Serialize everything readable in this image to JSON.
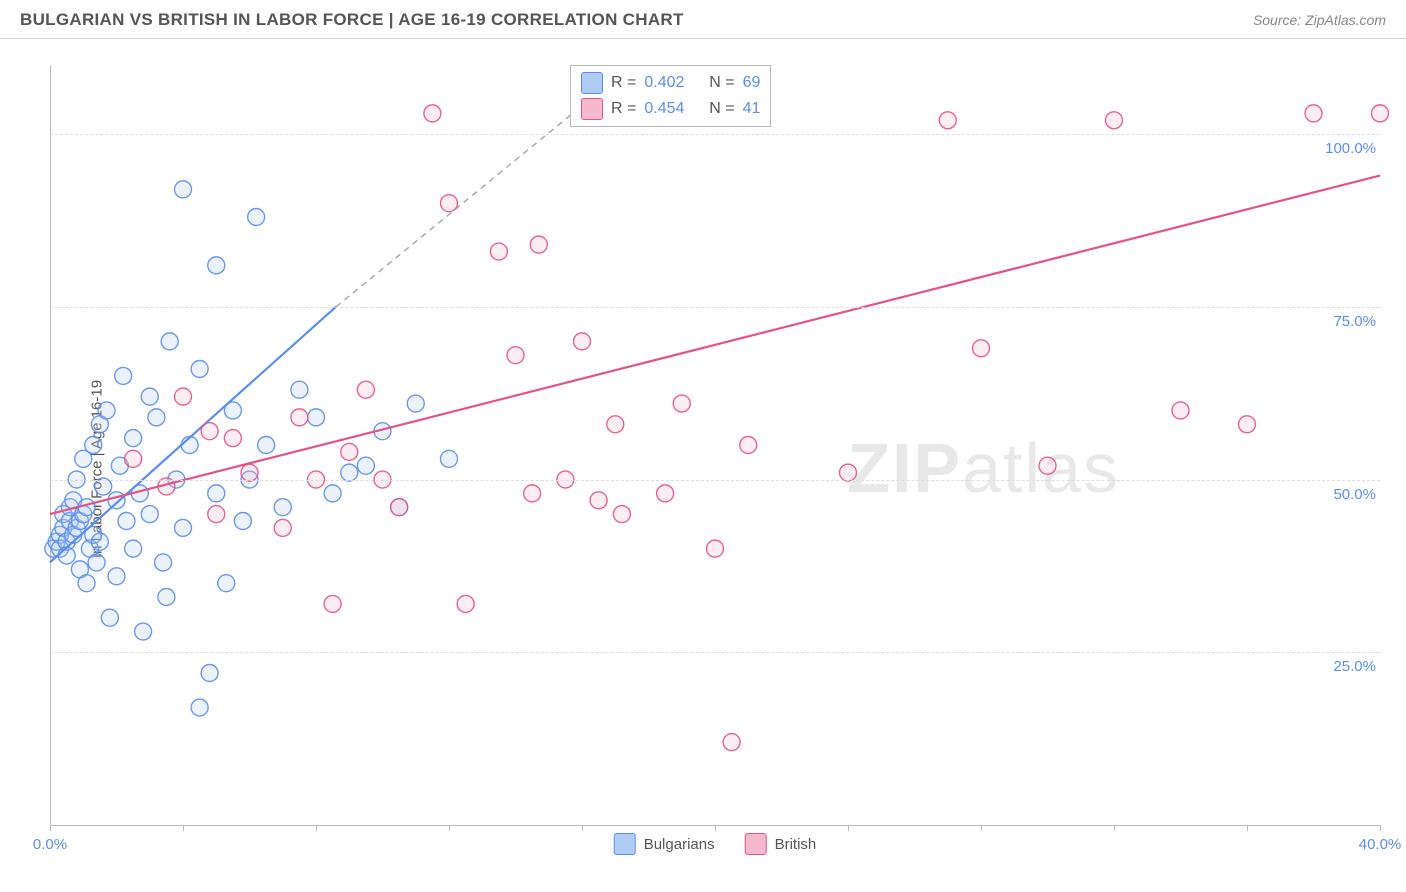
{
  "header": {
    "title": "BULGARIAN VS BRITISH IN LABOR FORCE | AGE 16-19 CORRELATION CHART",
    "source": "Source: ZipAtlas.com"
  },
  "watermark": {
    "zip": "ZIP",
    "atlas": "atlas"
  },
  "chart": {
    "type": "scatter",
    "ylabel": "In Labor Force | Age 16-19",
    "xlim": [
      0,
      40
    ],
    "ylim": [
      0,
      110
    ],
    "xtick_step": 4,
    "xtick_labels_shown": {
      "0": "0.0%",
      "40": "40.0%"
    },
    "ytick_grid": [
      25,
      50,
      75,
      100
    ],
    "ytick_labels": {
      "25": "25.0%",
      "50": "50.0%",
      "75": "75.0%",
      "100": "100.0%"
    },
    "background_color": "#ffffff",
    "grid_dash_color": "#dddddd",
    "axis_color": "#bbbbbb",
    "label_color": "#5b8def",
    "marker_radius": 8.5,
    "marker_fill_opacity": 0.25,
    "marker_stroke_opacity": 0.9,
    "marker_stroke_width": 1.4,
    "trend_stroke_width": 2.2,
    "series": [
      {
        "name": "Bulgarians",
        "color": "#5b8def",
        "fill": "#aeccf4",
        "R": "0.402",
        "N": "69",
        "trend_solid": {
          "x1": 0,
          "y1": 38,
          "x2": 8.6,
          "y2": 75
        },
        "trend_dashed": {
          "x1": 8.6,
          "y1": 75,
          "x2": 17.5,
          "y2": 110
        },
        "points": [
          [
            0.1,
            40
          ],
          [
            0.2,
            41
          ],
          [
            0.3,
            42
          ],
          [
            0.3,
            40
          ],
          [
            0.4,
            43
          ],
          [
            0.4,
            45
          ],
          [
            0.5,
            41
          ],
          [
            0.5,
            39
          ],
          [
            0.6,
            44
          ],
          [
            0.6,
            46
          ],
          [
            0.7,
            47
          ],
          [
            0.7,
            42
          ],
          [
            0.8,
            43
          ],
          [
            0.8,
            50
          ],
          [
            0.9,
            44
          ],
          [
            0.9,
            37
          ],
          [
            1.0,
            45
          ],
          [
            1.0,
            53
          ],
          [
            1.1,
            46
          ],
          [
            1.1,
            35
          ],
          [
            1.2,
            40
          ],
          [
            1.3,
            55
          ],
          [
            1.3,
            42
          ],
          [
            1.4,
            38
          ],
          [
            1.5,
            58
          ],
          [
            1.5,
            41
          ],
          [
            1.6,
            49
          ],
          [
            1.7,
            60
          ],
          [
            1.8,
            30
          ],
          [
            2.0,
            47
          ],
          [
            2.0,
            36
          ],
          [
            2.1,
            52
          ],
          [
            2.2,
            65
          ],
          [
            2.3,
            44
          ],
          [
            2.5,
            56
          ],
          [
            2.5,
            40
          ],
          [
            2.7,
            48
          ],
          [
            2.8,
            28
          ],
          [
            3.0,
            62
          ],
          [
            3.0,
            45
          ],
          [
            3.2,
            59
          ],
          [
            3.4,
            38
          ],
          [
            3.5,
            33
          ],
          [
            3.6,
            70
          ],
          [
            3.8,
            50
          ],
          [
            4.0,
            43
          ],
          [
            4.0,
            92
          ],
          [
            4.2,
            55
          ],
          [
            4.5,
            17
          ],
          [
            4.5,
            66
          ],
          [
            4.8,
            22
          ],
          [
            5.0,
            48
          ],
          [
            5.0,
            81
          ],
          [
            5.3,
            35
          ],
          [
            5.5,
            60
          ],
          [
            5.8,
            44
          ],
          [
            6.0,
            50
          ],
          [
            6.2,
            88
          ],
          [
            6.5,
            55
          ],
          [
            7.0,
            46
          ],
          [
            7.5,
            63
          ],
          [
            8.0,
            59
          ],
          [
            8.5,
            48
          ],
          [
            9.0,
            51
          ],
          [
            9.5,
            52
          ],
          [
            10.0,
            57
          ],
          [
            10.5,
            46
          ],
          [
            11.0,
            61
          ],
          [
            12.0,
            53
          ]
        ]
      },
      {
        "name": "British",
        "color": "#e55384",
        "fill": "#f5b9cd",
        "R": "0.454",
        "N": "41",
        "trend_solid": {
          "x1": 0,
          "y1": 45,
          "x2": 40,
          "y2": 94
        },
        "trend_dashed": null,
        "points": [
          [
            2.5,
            53
          ],
          [
            3.5,
            49
          ],
          [
            4.0,
            62
          ],
          [
            4.8,
            57
          ],
          [
            5.0,
            45
          ],
          [
            5.5,
            56
          ],
          [
            6.0,
            51
          ],
          [
            7.0,
            43
          ],
          [
            7.5,
            59
          ],
          [
            8.0,
            50
          ],
          [
            8.5,
            32
          ],
          [
            9.0,
            54
          ],
          [
            9.5,
            63
          ],
          [
            10.0,
            50
          ],
          [
            10.5,
            46
          ],
          [
            11.5,
            103
          ],
          [
            12.0,
            90
          ],
          [
            12.5,
            32
          ],
          [
            13.5,
            83
          ],
          [
            14.0,
            68
          ],
          [
            14.5,
            48
          ],
          [
            14.7,
            84
          ],
          [
            15.5,
            50
          ],
          [
            16.0,
            70
          ],
          [
            16.5,
            47
          ],
          [
            17.0,
            58
          ],
          [
            17.2,
            45
          ],
          [
            18.5,
            48
          ],
          [
            19.0,
            61
          ],
          [
            20.0,
            40
          ],
          [
            20.5,
            12
          ],
          [
            21.0,
            55
          ],
          [
            24.0,
            51
          ],
          [
            27.0,
            102
          ],
          [
            28.0,
            69
          ],
          [
            30.0,
            52
          ],
          [
            32.0,
            102
          ],
          [
            34.0,
            60
          ],
          [
            36.0,
            58
          ],
          [
            38.0,
            103
          ],
          [
            40.0,
            103
          ]
        ]
      }
    ],
    "legend_label_1": "Bulgarians",
    "legend_label_2": "British"
  },
  "stats_box": {
    "R_label": "R =",
    "N_label": "N ="
  }
}
